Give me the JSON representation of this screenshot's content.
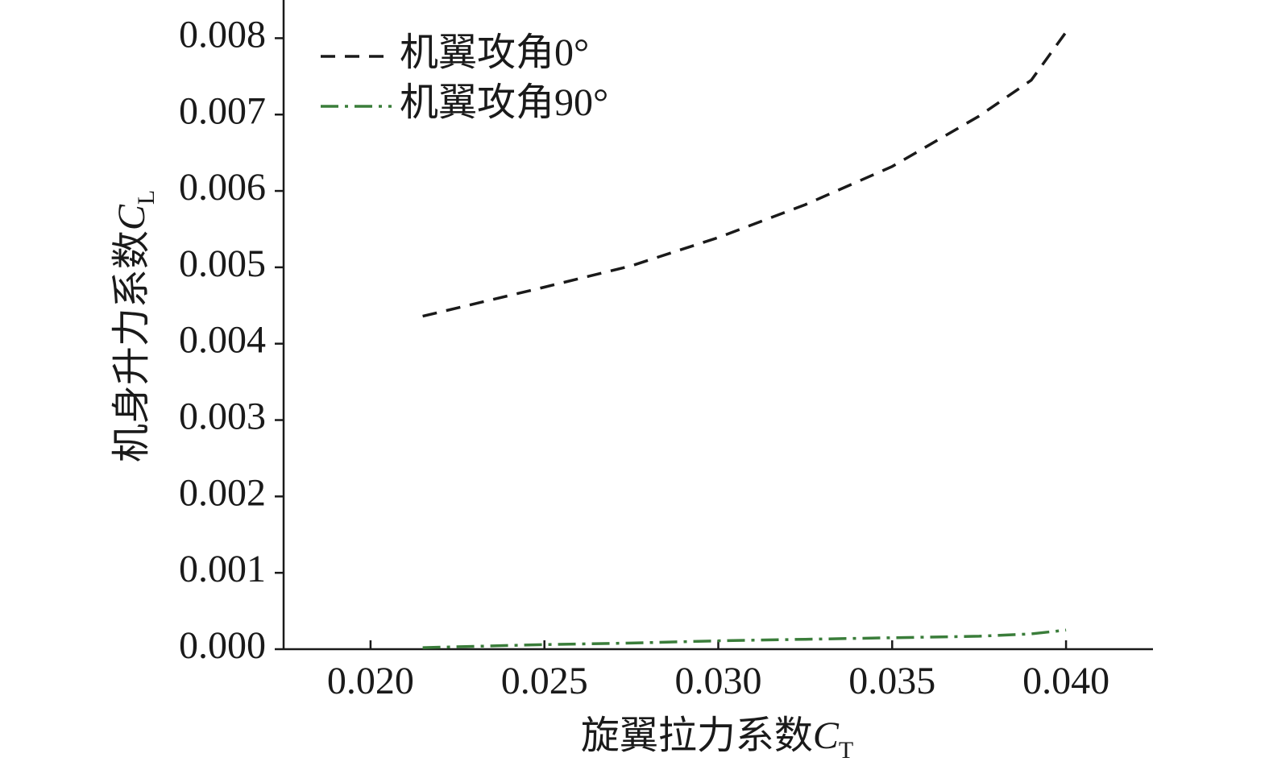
{
  "chart_data": {
    "type": "line",
    "xlabel": "旋翼拉力系数",
    "xlabel_symbol": "C",
    "xlabel_subscript": "T",
    "ylabel": "机身升力系数",
    "ylabel_symbol": "C",
    "ylabel_subscript": "L",
    "x": [
      0.0215,
      0.025,
      0.0275,
      0.03,
      0.0325,
      0.035,
      0.0375,
      0.039,
      0.04
    ],
    "series": [
      {
        "name": "机翼攻角0°",
        "color": "#1a1a1a",
        "dash": "dash",
        "values": [
          0.00436,
          0.00474,
          0.00502,
          0.00539,
          0.00582,
          0.00632,
          0.00698,
          0.00745,
          0.00808
        ]
      },
      {
        "name": "机翼攻角90°",
        "color": "#3a7d3a",
        "dash": "dashdot",
        "values": [
          2e-05,
          6e-05,
          8e-05,
          0.00011,
          0.00013,
          0.00015,
          0.00017,
          0.0002,
          0.00025
        ]
      }
    ],
    "xlim": [
      0.0175,
      0.0425
    ],
    "ylim": [
      0,
      0.0085
    ],
    "xticks": [
      {
        "value": 0.02,
        "label": "0.020"
      },
      {
        "value": 0.025,
        "label": "0.025"
      },
      {
        "value": 0.03,
        "label": "0.030"
      },
      {
        "value": 0.035,
        "label": "0.035"
      },
      {
        "value": 0.04,
        "label": "0.040"
      }
    ],
    "yticks": [
      {
        "value": 0,
        "label": "0.000"
      },
      {
        "value": 0.001,
        "label": "0.001"
      },
      {
        "value": 0.002,
        "label": "0.002"
      },
      {
        "value": 0.003,
        "label": "0.003"
      },
      {
        "value": 0.004,
        "label": "0.004"
      },
      {
        "value": 0.005,
        "label": "0.005"
      },
      {
        "value": 0.006,
        "label": "0.006"
      },
      {
        "value": 0.007,
        "label": "0.007"
      },
      {
        "value": 0.008,
        "label": "0.008"
      }
    ],
    "legend": "upper-left",
    "grid": false
  }
}
